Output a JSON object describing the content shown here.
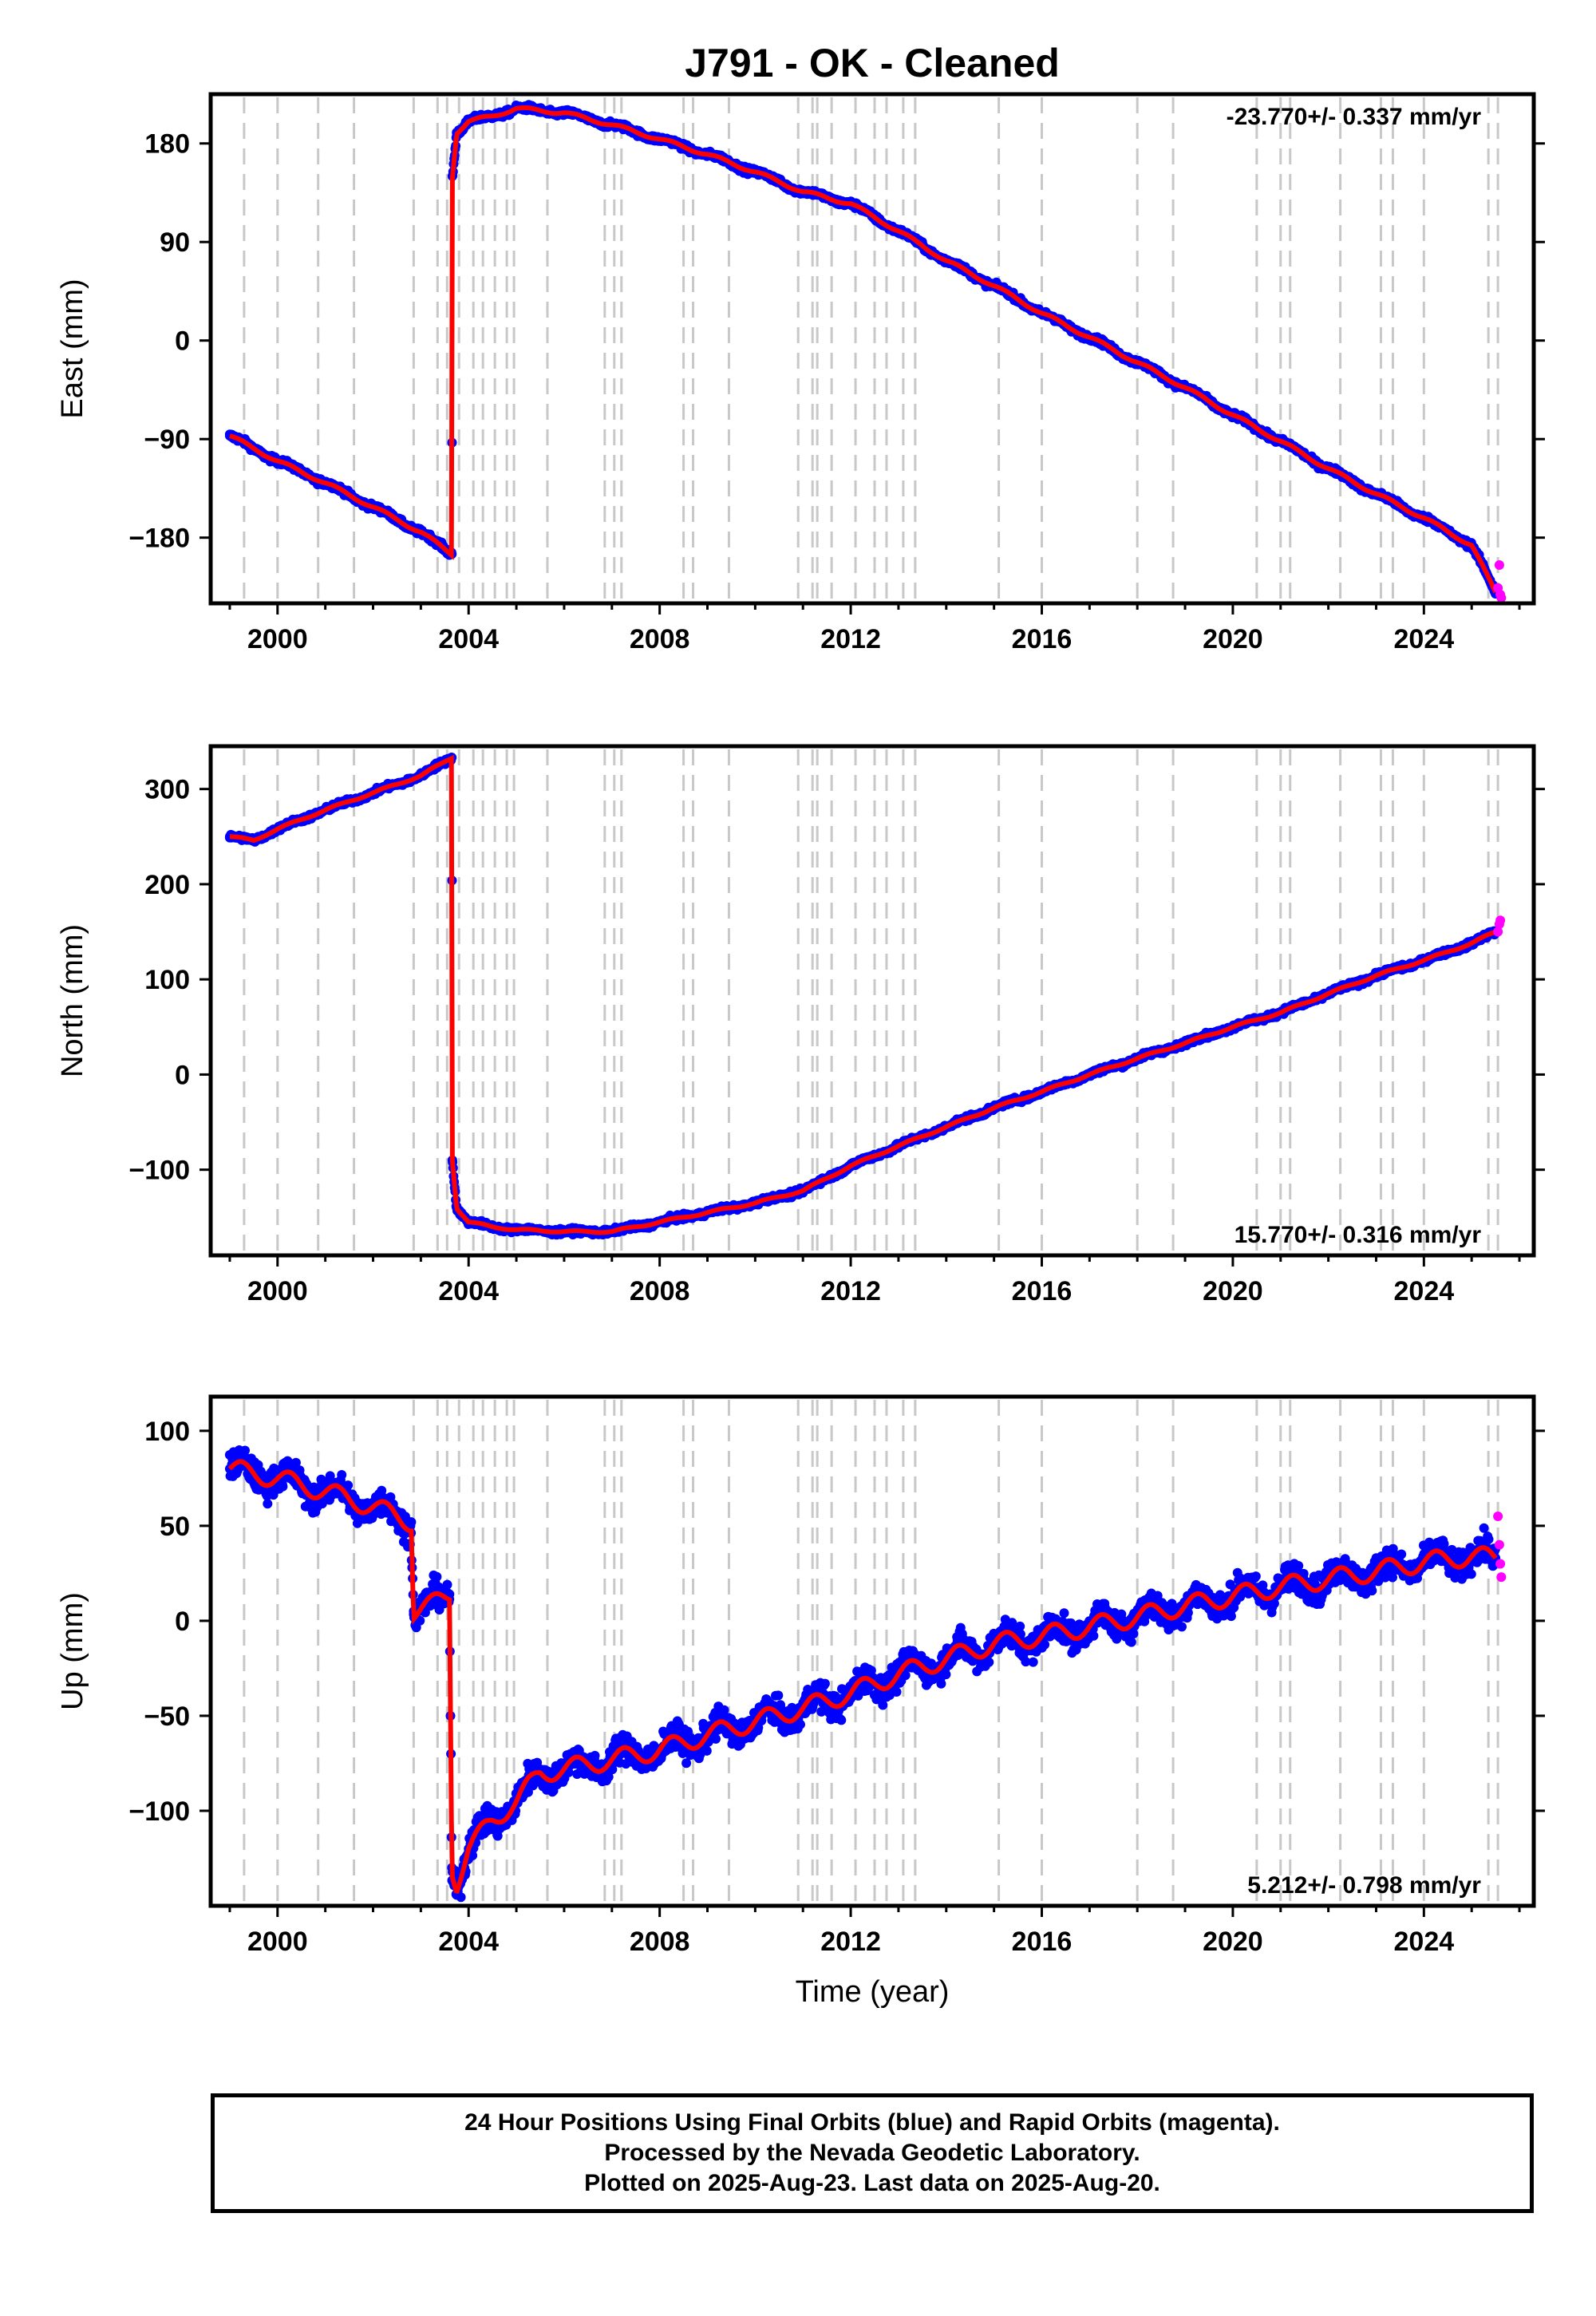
{
  "title": "J791  - OK - Cleaned",
  "footer": {
    "line1": "24 Hour Positions Using Final Orbits (blue) and Rapid Orbits (magenta).",
    "line2": "Processed by the Nevada Geodetic Laboratory.",
    "line3": "Plotted on 2025-Aug-23. Last data on 2025-Aug-20."
  },
  "colors": {
    "final": "#0000ff",
    "rapid": "#ff00ff",
    "model": "#ff0000",
    "event_lines": "#c8c8c8"
  },
  "chart_data": [
    {
      "type": "scatter",
      "ylabel": "East (mm)",
      "xlabel": "",
      "rate": "-23.770+/- 0.337 mm/yr",
      "rate_position": "top-right",
      "xlim": [
        1998.6,
        2026.3
      ],
      "ylim": [
        -240,
        225
      ],
      "yticks": [
        -180,
        -90,
        0,
        90,
        180
      ],
      "xticks": [
        2000,
        2004,
        2008,
        2012,
        2016,
        2020,
        2024
      ],
      "series": [
        {
          "role": "final",
          "color": "#0000ff",
          "x": [
            1999.0,
            2000.0,
            2001.0,
            2002.0,
            2003.0,
            2003.65,
            2003.66,
            2003.75,
            2004.0,
            2004.5,
            2005.0,
            2005.5,
            2006.0,
            2007.0,
            2008.0,
            2009.0,
            2010.0,
            2011.0,
            2012.0,
            2013.0,
            2014.0,
            2015.0,
            2016.0,
            2017.0,
            2018.0,
            2019.0,
            2020.0,
            2021.0,
            2022.0,
            2023.0,
            2024.0,
            2025.0,
            2025.5
          ],
          "y": [
            -87,
            -110,
            -130,
            -152,
            -175,
            -195,
            150,
            190,
            200,
            205,
            212,
            210,
            208,
            197,
            184,
            170,
            154,
            136,
            125,
            100,
            73,
            50,
            25,
            3,
            -20,
            -43,
            -68,
            -92,
            -117,
            -140,
            -162,
            -187,
            -230
          ]
        },
        {
          "role": "rapid",
          "color": "#ff00ff",
          "x": [
            2025.55,
            2025.58,
            2025.6,
            2025.62
          ],
          "y": [
            -226,
            -205,
            -232,
            -235
          ]
        }
      ],
      "event_lines": [
        1999.3,
        2000.0,
        2000.85,
        2001.6,
        2002.85,
        2003.35,
        2003.55,
        2003.8,
        2004.1,
        2004.3,
        2004.55,
        2004.8,
        2004.95,
        2005.65,
        2006.85,
        2007.05,
        2007.2,
        2008.5,
        2008.7,
        2009.45,
        2010.9,
        2011.2,
        2011.3,
        2011.6,
        2012.1,
        2012.5,
        2012.75,
        2013.1,
        2013.35,
        2015.1,
        2016.0,
        2018.0,
        2018.75,
        2020.5,
        2021.0,
        2021.2,
        2022.25,
        2023.1,
        2023.35,
        2024.0,
        2025.35,
        2025.55
      ]
    },
    {
      "type": "scatter",
      "ylabel": "North (mm)",
      "xlabel": "",
      "rate": "15.770+/- 0.316 mm/yr",
      "rate_position": "bottom-right",
      "xlim": [
        1998.6,
        2026.3
      ],
      "ylim": [
        -190,
        345
      ],
      "yticks": [
        -100,
        0,
        100,
        200,
        300
      ],
      "xticks": [
        2000,
        2004,
        2008,
        2012,
        2016,
        2020,
        2024
      ],
      "series": [
        {
          "role": "final",
          "color": "#0000ff",
          "x": [
            1999.0,
            1999.5,
            2000.0,
            2001.0,
            2002.0,
            2003.0,
            2003.65,
            2003.66,
            2003.75,
            2004.0,
            2004.5,
            2005.0,
            2006.0,
            2007.0,
            2007.5,
            2008.0,
            2009.0,
            2010.0,
            2011.0,
            2012.0,
            2013.0,
            2014.0,
            2015.0,
            2016.0,
            2017.0,
            2018.0,
            2019.0,
            2020.0,
            2021.0,
            2022.0,
            2023.0,
            2024.0,
            2025.0,
            2025.5
          ],
          "y": [
            250,
            246,
            258,
            278,
            296,
            314,
            333,
            -90,
            -140,
            -155,
            -160,
            -163,
            -165,
            -165,
            -160,
            -155,
            -145,
            -135,
            -122,
            -96,
            -75,
            -55,
            -35,
            -18,
            0,
            17,
            33,
            50,
            65,
            85,
            104,
            120,
            138,
            150
          ]
        },
        {
          "role": "rapid",
          "color": "#ff00ff",
          "x": [
            2025.55,
            2025.58,
            2025.6
          ],
          "y": [
            150,
            158,
            162
          ]
        }
      ],
      "event_lines": [
        1999.3,
        2000.0,
        2000.85,
        2001.6,
        2002.85,
        2003.35,
        2003.55,
        2003.8,
        2004.1,
        2004.3,
        2004.55,
        2004.8,
        2004.95,
        2005.65,
        2006.85,
        2007.05,
        2007.2,
        2008.5,
        2008.7,
        2009.45,
        2010.9,
        2011.2,
        2011.3,
        2011.6,
        2012.1,
        2012.5,
        2012.75,
        2013.1,
        2013.35,
        2015.1,
        2016.0,
        2018.0,
        2018.75,
        2020.5,
        2021.0,
        2021.2,
        2022.25,
        2023.1,
        2023.35,
        2024.0,
        2025.35,
        2025.55
      ]
    },
    {
      "type": "scatter",
      "ylabel": "Up (mm)",
      "xlabel": "Time (year)",
      "rate": "5.212+/- 0.798 mm/yr",
      "rate_position": "bottom-right",
      "xlim": [
        1998.6,
        2026.3
      ],
      "ylim": [
        -150,
        118
      ],
      "yticks": [
        -100,
        -50,
        0,
        50,
        100
      ],
      "xticks": [
        2000,
        2004,
        2008,
        2012,
        2016,
        2020,
        2024
      ],
      "series": [
        {
          "role": "final",
          "color": "#0000ff",
          "x": [
            1999.0,
            2000.0,
            2001.0,
            2002.0,
            2002.8,
            2002.85,
            2003.2,
            2003.6,
            2003.65,
            2003.75,
            2004.0,
            2004.5,
            2005.0,
            2005.5,
            2006.0,
            2007.0,
            2008.0,
            2009.0,
            2010.0,
            2011.0,
            2012.0,
            2013.0,
            2014.0,
            2015.0,
            2016.0,
            2017.0,
            2018.0,
            2019.0,
            2020.0,
            2021.0,
            2022.0,
            2023.0,
            2024.0,
            2025.0,
            2025.5
          ],
          "y": [
            80,
            75,
            68,
            60,
            52,
            5,
            8,
            14,
            -130,
            -138,
            -120,
            -105,
            -95,
            -80,
            -78,
            -73,
            -68,
            -60,
            -53,
            -46,
            -38,
            -28,
            -20,
            -12,
            -8,
            -3,
            2,
            8,
            13,
            18,
            22,
            26,
            31,
            34,
            33
          ]
        },
        {
          "role": "rapid",
          "color": "#ff00ff",
          "x": [
            2025.55,
            2025.58,
            2025.6,
            2025.62
          ],
          "y": [
            55,
            40,
            30,
            23
          ]
        }
      ],
      "event_lines": [
        1999.3,
        2000.0,
        2000.85,
        2001.6,
        2002.85,
        2003.35,
        2003.55,
        2003.8,
        2004.1,
        2004.3,
        2004.55,
        2004.8,
        2004.95,
        2005.65,
        2006.85,
        2007.05,
        2007.2,
        2008.5,
        2008.7,
        2009.45,
        2010.9,
        2011.2,
        2011.3,
        2011.6,
        2012.1,
        2012.5,
        2012.75,
        2013.1,
        2013.35,
        2015.1,
        2016.0,
        2018.0,
        2018.75,
        2020.5,
        2021.0,
        2021.2,
        2022.25,
        2023.1,
        2023.35,
        2024.0,
        2025.35,
        2025.55
      ]
    }
  ]
}
